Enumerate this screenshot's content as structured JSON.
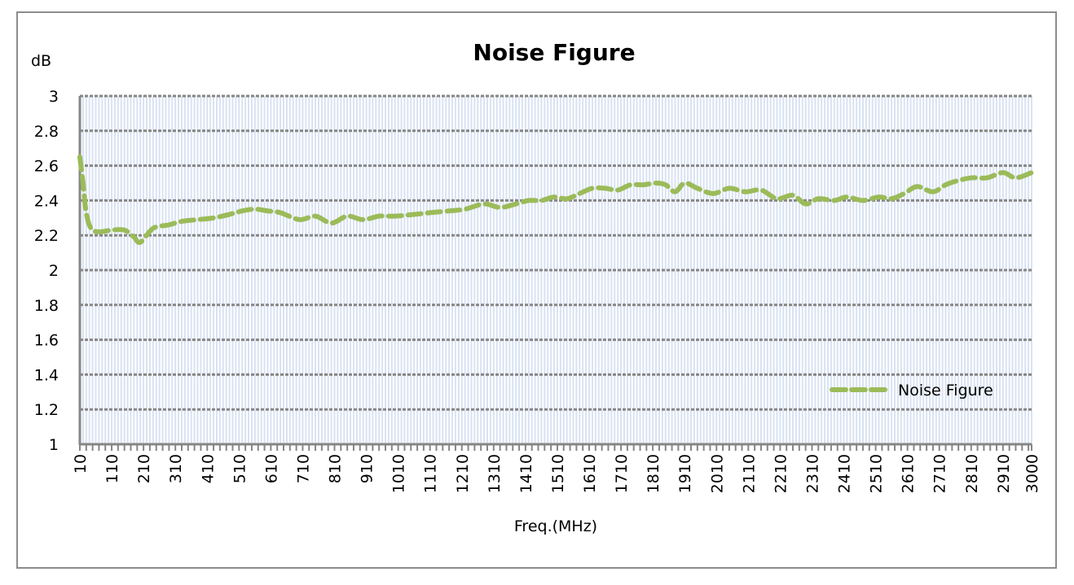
{
  "chart_data": {
    "type": "line",
    "title": "Noise Figure",
    "xlabel": "Freq.(MHz)",
    "ylabel": "dB",
    "ylim": [
      1,
      3
    ],
    "xlim": [
      10,
      3000
    ],
    "yticks": [
      "1",
      "1.2",
      "1.4",
      "1.6",
      "1.8",
      "2",
      "2.2",
      "2.4",
      "2.6",
      "2.8",
      "3"
    ],
    "xticks": [
      "10",
      "110",
      "210",
      "310",
      "410",
      "510",
      "610",
      "710",
      "810",
      "910",
      "1010",
      "1110",
      "1210",
      "1310",
      "1410",
      "1510",
      "1610",
      "1710",
      "1810",
      "1910",
      "2010",
      "2110",
      "2210",
      "2310",
      "2410",
      "2510",
      "2610",
      "2710",
      "2810",
      "2910",
      "3000"
    ],
    "grid": true,
    "legend": {
      "position": "bottom-right",
      "entries": [
        "Noise Figure"
      ]
    },
    "series": [
      {
        "name": "Noise Figure",
        "color": "#9bbb59",
        "x": [
          10,
          20,
          30,
          45,
          70,
          110,
          150,
          180,
          200,
          240,
          290,
          330,
          380,
          430,
          480,
          520,
          560,
          600,
          640,
          700,
          750,
          800,
          850,
          900,
          950,
          1000,
          1060,
          1110,
          1170,
          1220,
          1280,
          1330,
          1380,
          1420,
          1460,
          1500,
          1540,
          1580,
          1620,
          1660,
          1700,
          1740,
          1780,
          1820,
          1850,
          1880,
          1910,
          1950,
          2000,
          2050,
          2100,
          2150,
          2200,
          2250,
          2290,
          2330,
          2380,
          2420,
          2470,
          2520,
          2560,
          2600,
          2640,
          2690,
          2730,
          2760,
          2810,
          2860,
          2910,
          2950,
          3000
        ],
        "y": [
          2.65,
          2.5,
          2.33,
          2.24,
          2.22,
          2.23,
          2.23,
          2.19,
          2.16,
          2.24,
          2.26,
          2.28,
          2.29,
          2.3,
          2.32,
          2.34,
          2.35,
          2.34,
          2.33,
          2.29,
          2.31,
          2.27,
          2.31,
          2.29,
          2.31,
          2.31,
          2.32,
          2.33,
          2.34,
          2.35,
          2.38,
          2.36,
          2.38,
          2.4,
          2.4,
          2.42,
          2.41,
          2.44,
          2.47,
          2.47,
          2.46,
          2.49,
          2.49,
          2.5,
          2.49,
          2.45,
          2.5,
          2.47,
          2.44,
          2.47,
          2.45,
          2.46,
          2.41,
          2.43,
          2.38,
          2.41,
          2.4,
          2.42,
          2.4,
          2.42,
          2.41,
          2.44,
          2.48,
          2.45,
          2.49,
          2.51,
          2.53,
          2.53,
          2.56,
          2.53,
          2.56
        ]
      }
    ]
  }
}
